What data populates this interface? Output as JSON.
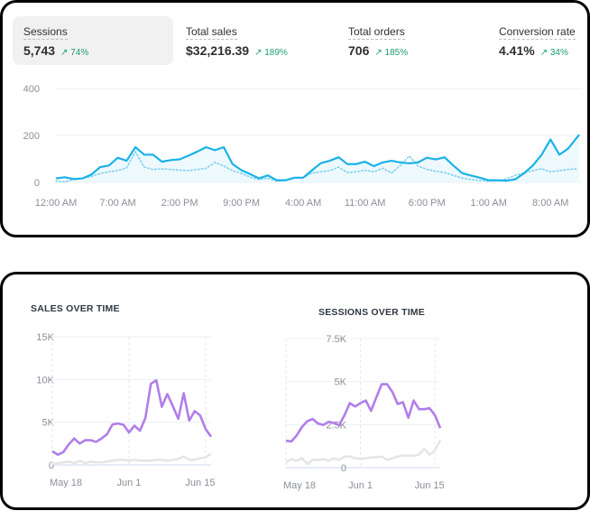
{
  "metrics": [
    {
      "label": "Sessions",
      "value": "5,743",
      "change": "74%",
      "active": true
    },
    {
      "label": "Total sales",
      "value": "$32,216.39",
      "change": "189%"
    },
    {
      "label": "Total orders",
      "value": "706",
      "change": "185%"
    },
    {
      "label": "Conversion rate",
      "value": "4.41%",
      "change": "34%"
    }
  ],
  "colors": {
    "sessions_line": "#1ab2e8",
    "sales_line": "#b07ee8",
    "comparison_line": "#e3e5e8",
    "positive": "#1a9e6a"
  },
  "chart_data": [
    {
      "type": "line",
      "title": "Sessions",
      "y_ticks": [
        "400",
        "200",
        "0"
      ],
      "ylim": [
        0,
        400
      ],
      "x_ticks": [
        "12:00 AM",
        "7:00 AM",
        "2:00 PM",
        "9:00 PM",
        "4:00 AM",
        "11:00 AM",
        "6:00 PM",
        "1:00 AM",
        "8:00 AM"
      ],
      "x_unit": "hour",
      "series": [
        {
          "name": "current",
          "values": [
            17,
            22,
            14,
            17,
            33,
            65,
            72,
            105,
            92,
            150,
            118,
            118,
            88,
            95,
            98,
            114,
            131,
            150,
            137,
            150,
            78,
            52,
            35,
            17,
            30,
            9,
            9,
            20,
            20,
            52,
            82,
            92,
            107,
            78,
            78,
            88,
            69,
            85,
            92,
            85,
            81,
            85,
            105,
            98,
            107,
            72,
            39,
            29,
            20,
            9,
            9,
            7,
            13,
            39,
            72,
            118,
            183,
            118,
            144,
            203
          ]
        },
        {
          "name": "previous",
          "values": [
            5,
            2,
            12,
            17,
            25,
            38,
            45,
            50,
            62,
            130,
            65,
            55,
            58,
            55,
            52,
            50,
            55,
            60,
            85,
            70,
            50,
            38,
            22,
            12,
            18,
            5,
            9,
            18,
            20,
            40,
            45,
            50,
            65,
            42,
            45,
            52,
            45,
            60,
            40,
            72,
            112,
            70,
            55,
            48,
            42,
            30,
            18,
            12,
            8,
            5,
            6,
            15,
            30,
            40,
            50,
            58,
            45,
            50,
            55,
            58
          ]
        }
      ]
    },
    {
      "type": "line",
      "title": "SALES OVER TIME",
      "y_ticks": [
        "15K",
        "10K",
        "5K",
        "0"
      ],
      "ylim": [
        0,
        15
      ],
      "x_ticks": [
        "May 18",
        "Jun 1",
        "Jun 15"
      ],
      "series": [
        {
          "name": "current",
          "values": [
            1.6,
            1.2,
            1.5,
            2.4,
            3.1,
            2.5,
            2.9,
            2.9,
            2.7,
            3.1,
            3.6,
            4.75,
            4.85,
            4.7,
            3.8,
            4.6,
            4.0,
            5.5,
            9.5,
            9.9,
            6.8,
            8.3,
            6.9,
            5.4,
            8.4,
            5.2,
            6.3,
            5.8,
            4.2,
            3.3
          ]
        },
        {
          "name": "previous",
          "values": [
            0.1,
            0.2,
            0.3,
            0.4,
            0.2,
            0.5,
            0.2,
            0.4,
            0.3,
            0.3,
            0.4,
            0.5,
            0.6,
            0.6,
            0.5,
            0.6,
            0.5,
            0.5,
            0.5,
            0.6,
            0.6,
            0.5,
            0.6,
            0.7,
            1.0,
            0.6,
            0.6,
            0.8,
            0.9,
            1.3
          ]
        }
      ]
    },
    {
      "type": "line",
      "title": "SESSIONS OVER TIME",
      "y_ticks": [
        "7.5K",
        "5K",
        "2.5K",
        "0"
      ],
      "ylim": [
        0,
        7.5
      ],
      "x_ticks": [
        "May 18",
        "Jun 1",
        "Jun 15"
      ],
      "series": [
        {
          "name": "current",
          "values": [
            1.57,
            1.52,
            1.87,
            2.36,
            2.7,
            2.83,
            2.57,
            2.48,
            2.66,
            2.6,
            2.46,
            3.05,
            3.75,
            3.55,
            3.75,
            3.9,
            3.3,
            4.1,
            4.85,
            4.85,
            4.4,
            3.7,
            3.8,
            2.9,
            3.9,
            3.4,
            3.4,
            3.45,
            3.05,
            2.3
          ]
        },
        {
          "name": "previous",
          "values": [
            0.3,
            0.5,
            0.4,
            0.55,
            0.2,
            0.45,
            0.45,
            0.5,
            0.4,
            0.55,
            0.45,
            0.65,
            0.65,
            0.55,
            0.5,
            0.55,
            0.6,
            0.6,
            0.65,
            0.45,
            0.55,
            0.65,
            0.7,
            0.7,
            0.7,
            0.75,
            1.1,
            0.75,
            1.0,
            1.6
          ]
        }
      ]
    }
  ]
}
